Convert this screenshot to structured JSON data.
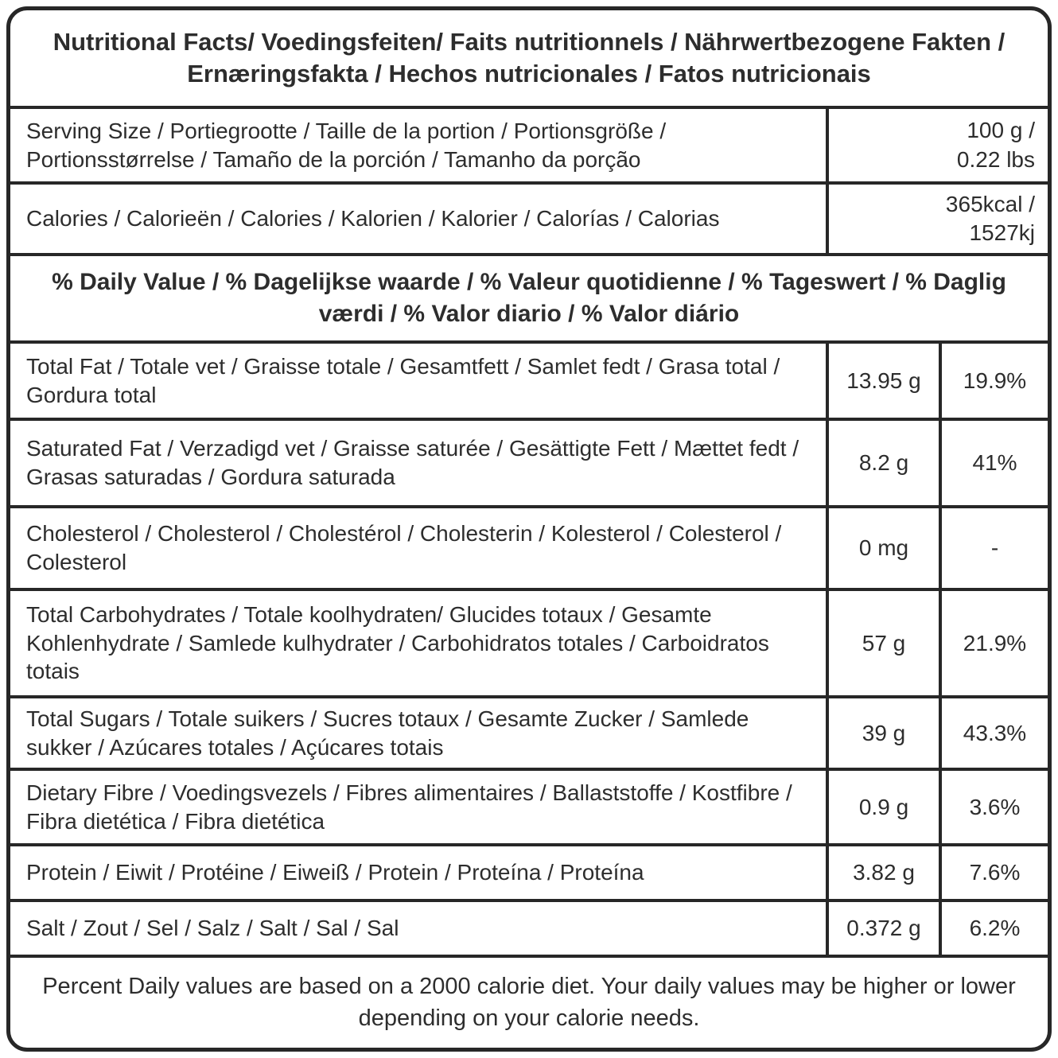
{
  "header": {
    "title": "Nutritional Facts/ Voedingsfeiten/ Faits nutritionnels / Nährwertbezogene Fakten / Ernæringsfakta / Hechos nutricionales / Fatos nutricionais"
  },
  "serving": {
    "label": "Serving Size / Portiegrootte / Taille de la portion / Portionsgröße / Portionsstørrelse / Tamaño de la porción / Tamanho da porção",
    "value": "100 g /\n0.22 lbs"
  },
  "calories": {
    "label": "Calories / Calorieën / Calories / Kalorien / Kalorier / Calorías / Calorias",
    "value": "365kcal /\n1527kj"
  },
  "daily_value_header": "% Daily Value / % Dagelijkse waarde / % Valeur quotidienne / % Tageswert / % Daglig værdi / % Valor diario / % Valor diário",
  "rows": [
    {
      "label": "Total Fat / Totale vet / Graisse totale / Gesamtfett / Samlet fedt / Grasa total / Gordura total",
      "amount": "13.95 g",
      "percent": "19.9%"
    },
    {
      "label": "Saturated Fat / Verzadigd vet / Graisse saturée / Gesättigte Fett / Mættet fedt / Grasas saturadas / Gordura saturada",
      "amount": "8.2 g",
      "percent": "41%"
    },
    {
      "label": "Cholesterol / Cholesterol  / Cholestérol / Cholesterin /  Kolesterol / Colesterol / Colesterol",
      "amount": "0 mg",
      "percent": "-"
    },
    {
      "label": "Total Carbohydrates / Totale koolhydraten/ Glucides totaux / Gesamte Kohlenhydrate / Samlede kulhydrater / Carbohidratos totales / Carboidratos totais",
      "amount": "57 g",
      "percent": "21.9%"
    },
    {
      "label": "Total Sugars / Totale suikers / Sucres totaux / Gesamte Zucker / Samlede sukker / Azúcares totales / Açúcares totais",
      "amount": "39 g",
      "percent": "43.3%"
    },
    {
      "label": "Dietary Fibre / Voedingsvezels / Fibres alimentaires / Ballaststoffe / Kostfibre / Fibra dietética / Fibra dietética",
      "amount": "0.9 g",
      "percent": "3.6%"
    },
    {
      "label": "Protein / Eiwit / Protéine / Eiweiß / Protein / Proteína / Proteína",
      "amount": "3.82 g",
      "percent": "7.6%"
    },
    {
      "label": "Salt / Zout / Sel / Salz / Salt / Sal / Sal",
      "amount": "0.372 g",
      "percent": "6.2%"
    }
  ],
  "footer": "Percent Daily values are based on a 2000 calorie diet. Your daily values may be higher or lower depending on your calorie needs."
}
